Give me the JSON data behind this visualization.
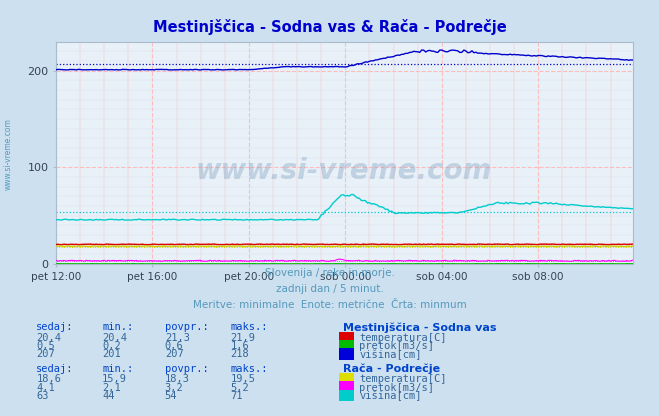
{
  "title": "Mestinjščica - Sodna vas & Rača - Podrečje",
  "bg_color": "#cce0f0",
  "plot_bg_color": "#e8f0f8",
  "title_color": "#0000cc",
  "subtitle_lines": [
    "Slovenija / reke in morje.",
    "zadnji dan / 5 minut.",
    "Meritve: minimalne  Enote: metrične  Črta: minmum"
  ],
  "subtitle_color": "#5599bb",
  "x_tick_labels": [
    "pet 12:00",
    "pet 16:00",
    "pet 20:00",
    "sob 00:00",
    "sob 04:00",
    "sob 08:00"
  ],
  "x_tick_positions": [
    0,
    48,
    96,
    144,
    192,
    240
  ],
  "n_points": 288,
  "ylim": [
    0,
    230
  ],
  "yticks": [
    0,
    100,
    200
  ],
  "watermark": "www.si-vreme.com",
  "watermark_color": "#7799bb",
  "station1_name": "Mestinjščica - Sodna vas",
  "station2_name": "Rača - Podrečje",
  "table_header_color": "#0044cc",
  "table_value_color": "#336699",
  "left_text_color": "#5599bb",
  "col_labels": [
    "sedaj:",
    "min.:",
    "povpr.:",
    "maks.:"
  ],
  "row1_vals": [
    "20,4",
    "20,4",
    "21,3",
    "21,9"
  ],
  "row2_vals": [
    "0,5",
    "0,2",
    "0,6",
    "1,6"
  ],
  "row3_vals": [
    "207",
    "201",
    "207",
    "218"
  ],
  "row1b_vals": [
    "18,6",
    "15,9",
    "18,3",
    "19,5"
  ],
  "row2b_vals": [
    "4,1",
    "2,1",
    "3,2",
    "5,2"
  ],
  "row3b_vals": [
    "63",
    "44",
    "54",
    "71"
  ],
  "legend_labels_1": [
    "temperatura[C]",
    "pretok[m3/s]",
    "višina[cm]"
  ],
  "legend_colors_1": [
    "#dd0000",
    "#00bb00",
    "#0000dd"
  ],
  "legend_labels_2": [
    "temperatura[C]",
    "pretok[m3/s]",
    "višina[cm]"
  ],
  "legend_colors_2": [
    "#dddd00",
    "#ff00ff",
    "#00cccc"
  ],
  "visina1_avg": 207,
  "visina2_avg": 54,
  "temp1_avg": 21,
  "temp2_avg": 18,
  "pretok1_avg": 0.6,
  "pretok2_avg": 3.2
}
